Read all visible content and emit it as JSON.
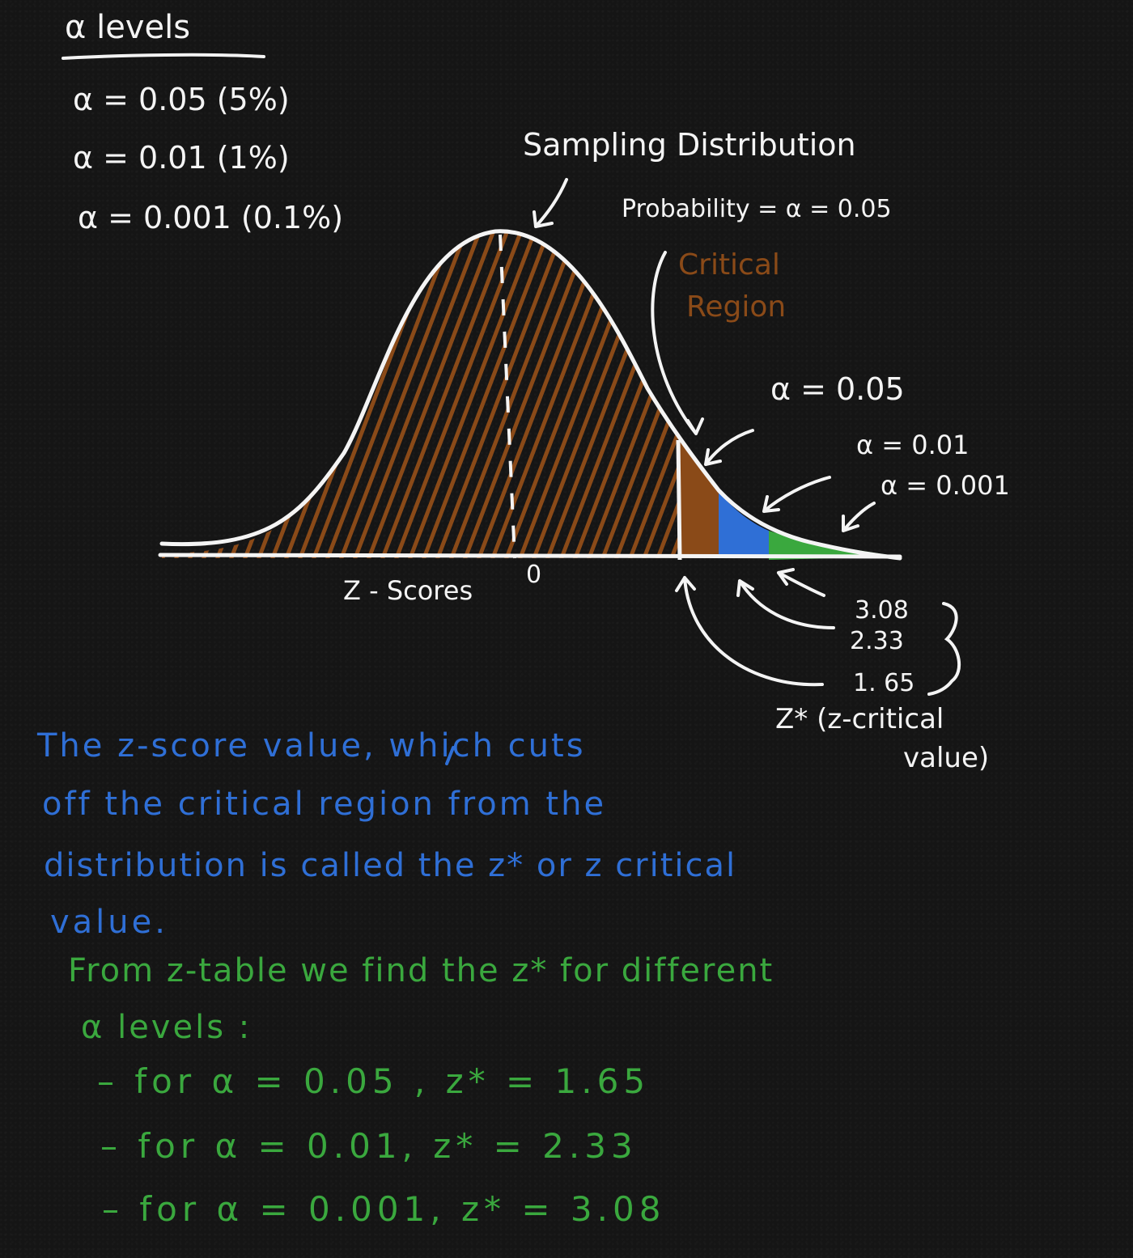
{
  "levels": {
    "heading": "α levels",
    "items": [
      "α = 0.05 (5%)",
      "α = 0.01 (1%)",
      "α = 0.001 (0.1%)"
    ]
  },
  "diagram": {
    "sampling_label": "Sampling Distribution",
    "probability_label": "Probability = α = 0.05",
    "critical_line1": "Critical",
    "critical_line2": "Region",
    "alpha_005": "α = 0.05",
    "alpha_001": "α = 0.01",
    "alpha_0001": "α = 0.001",
    "axis_label": "Z - Scores",
    "zero_label": "0",
    "crit_308": "3.08",
    "crit_233": "2.33",
    "crit_165": "1. 65",
    "zstar_label": "Z* (z-critical",
    "zstar_label2": "value)",
    "colors": {
      "brown": "#8a4a18",
      "blue": "#2f6fd6",
      "green": "#3aa83e",
      "white": "#f4f4f4"
    }
  },
  "explanation": {
    "line1": "The z-score value, which cuts",
    "line2": "off the critical region from the",
    "line3": "distribution is called the z* or z critical",
    "line4": "value."
  },
  "table": {
    "line1": "From z-table we find the z* for different",
    "line2": "α levels :",
    "rows": [
      "– for α = 0.05 , z* = 1.65",
      "– for α = 0.01, z* = 2.33",
      "– for α = 0.001, z* = 3.08"
    ]
  }
}
